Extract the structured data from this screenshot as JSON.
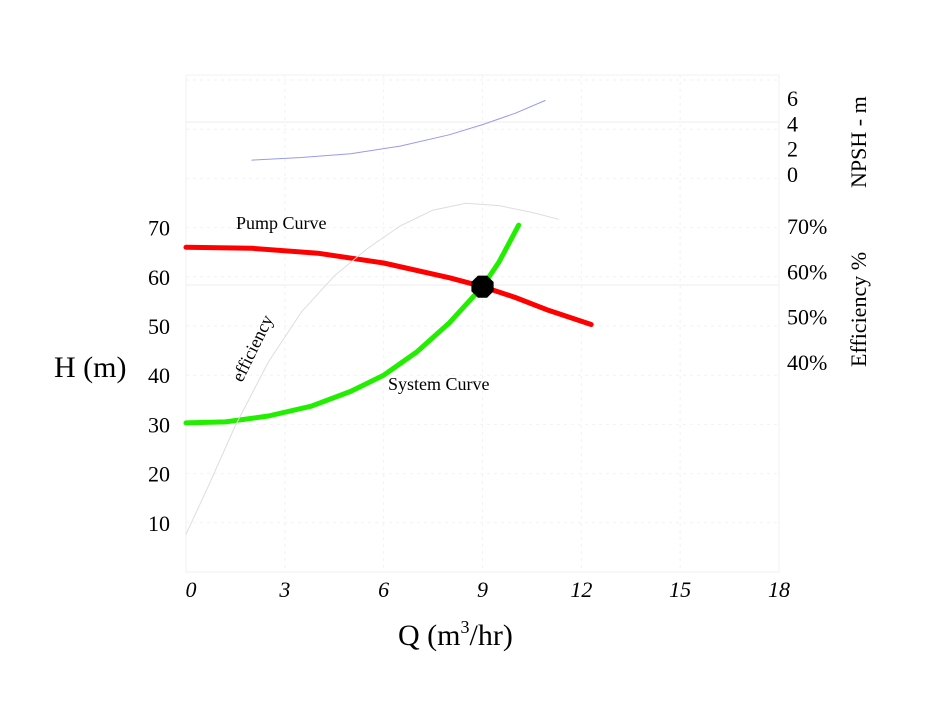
{
  "chart_data": {
    "type": "line",
    "title": "",
    "xlabel": "Q (m",
    "xlabel_sup": "3",
    "xlabel_tail": "/hr)",
    "ylabel": "H (m)",
    "xlim": [
      0,
      18
    ],
    "ylim": [
      0,
      75
    ],
    "x_ticks": [
      "0",
      "3",
      "6",
      "9",
      "12",
      "15",
      "18"
    ],
    "y_ticks": [
      "10",
      "20",
      "30",
      "40",
      "50",
      "60",
      "70"
    ],
    "grid": true,
    "right_axes": [
      {
        "label": "NPSH - m",
        "ticks": [
          "0",
          "2",
          "4",
          "6"
        ],
        "range": [
          0,
          6
        ]
      },
      {
        "label": "Efficiency %",
        "ticks": [
          "40%",
          "50%",
          "60%",
          "70%"
        ],
        "range": [
          40,
          70
        ]
      }
    ],
    "series": [
      {
        "name": "Pump Curve",
        "color": "#ff0000",
        "axis": "H",
        "x": [
          0,
          2,
          4,
          6,
          8,
          9,
          10,
          11,
          12.3
        ],
        "y": [
          66,
          65.8,
          64.8,
          62.8,
          59.8,
          58,
          55.8,
          53.2,
          50.3
        ]
      },
      {
        "name": "System Curve",
        "color": "#22ee00",
        "axis": "H",
        "x": [
          0,
          1.2,
          2.5,
          3.8,
          5,
          6,
          7,
          8,
          9,
          9.5,
          10.1
        ],
        "y": [
          30.3,
          30.5,
          31.7,
          33.7,
          36.7,
          40,
          44.7,
          50.7,
          58,
          63,
          70.5
        ]
      },
      {
        "name": "efficiency",
        "color": "#dddddd",
        "axis": "Efficiency %",
        "x": [
          0,
          0.7,
          1.5,
          2.5,
          3.5,
          4.5,
          5.5,
          6.5,
          7.5,
          8.5,
          9.5,
          10.5,
          11.3
        ],
        "y": [
          2,
          13,
          26,
          40,
          51,
          59,
          65,
          70,
          73.5,
          75,
          74.5,
          73,
          71.5
        ]
      },
      {
        "name": "NPSH",
        "color": "#9999ee",
        "axis": "NPSH - m",
        "x": [
          2,
          3.5,
          5,
          6.5,
          8,
          9,
          10,
          10.9
        ],
        "y": [
          1.1,
          1.3,
          1.6,
          2.2,
          3.1,
          3.9,
          4.8,
          5.8
        ]
      }
    ],
    "operating_point": {
      "x": 9,
      "y": 58
    },
    "annotations": [
      "Pump Curve",
      "System Curve",
      "efficiency"
    ]
  }
}
